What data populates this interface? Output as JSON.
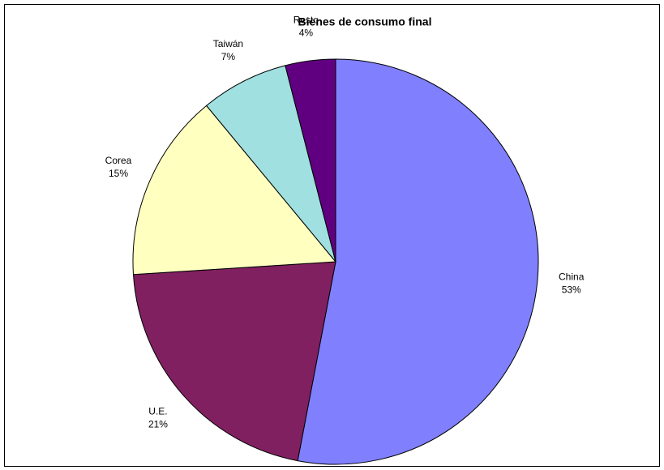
{
  "chart_data": {
    "type": "pie",
    "title": "Bienes de consumo final",
    "categories": [
      "China",
      "U.E.",
      "Corea",
      "Taiwán",
      "Resto"
    ],
    "values": [
      53,
      21,
      15,
      7,
      4
    ],
    "value_labels": [
      "53%",
      "21%",
      "15%",
      "7%",
      "4%"
    ],
    "colors": [
      "#8080ff",
      "#802060",
      "#ffffc0",
      "#a0e0e0",
      "#600080"
    ]
  }
}
